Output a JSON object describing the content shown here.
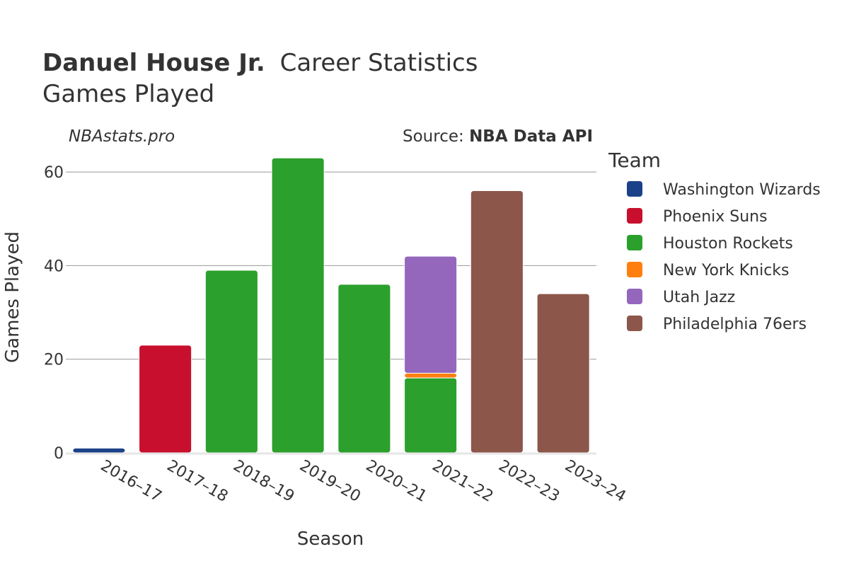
{
  "header": {
    "player_name": "Danuel House Jr.",
    "title_rest": "Career Statistics",
    "subtitle": "Games Played"
  },
  "watermark": "NBAstats.pro",
  "source": {
    "label": "Source: ",
    "name": "NBA Data API"
  },
  "legend": {
    "title": "Team"
  },
  "chart_data": {
    "type": "bar",
    "stacked": true,
    "title": "Danuel House Jr. Career Statistics",
    "subtitle": "Games Played",
    "xlabel": "Season",
    "ylabel": "Games Played",
    "ylim": [
      0,
      65
    ],
    "yticks": [
      0,
      20,
      40,
      60
    ],
    "grid": true,
    "legend_position": "right",
    "categories": [
      "2016–17",
      "2017–18",
      "2018–19",
      "2019–20",
      "2020–21",
      "2021–22",
      "2022–23",
      "2023–24"
    ],
    "series": [
      {
        "name": "Washington Wizards",
        "color": "#1b4289",
        "values": [
          1,
          0,
          0,
          0,
          0,
          0,
          0,
          0
        ]
      },
      {
        "name": "Phoenix Suns",
        "color": "#c8102e",
        "values": [
          0,
          23,
          0,
          0,
          0,
          0,
          0,
          0
        ]
      },
      {
        "name": "Houston Rockets",
        "color": "#2ca02c",
        "values": [
          0,
          0,
          39,
          63,
          36,
          16,
          0,
          0
        ]
      },
      {
        "name": "New York Knicks",
        "color": "#ff7f0e",
        "values": [
          0,
          0,
          0,
          0,
          0,
          1,
          0,
          0
        ]
      },
      {
        "name": "Utah Jazz",
        "color": "#9467bd",
        "values": [
          0,
          0,
          0,
          0,
          0,
          25,
          0,
          0
        ]
      },
      {
        "name": "Philadelphia 76ers",
        "color": "#8c564b",
        "values": [
          0,
          0,
          0,
          0,
          0,
          0,
          56,
          34
        ]
      }
    ]
  }
}
